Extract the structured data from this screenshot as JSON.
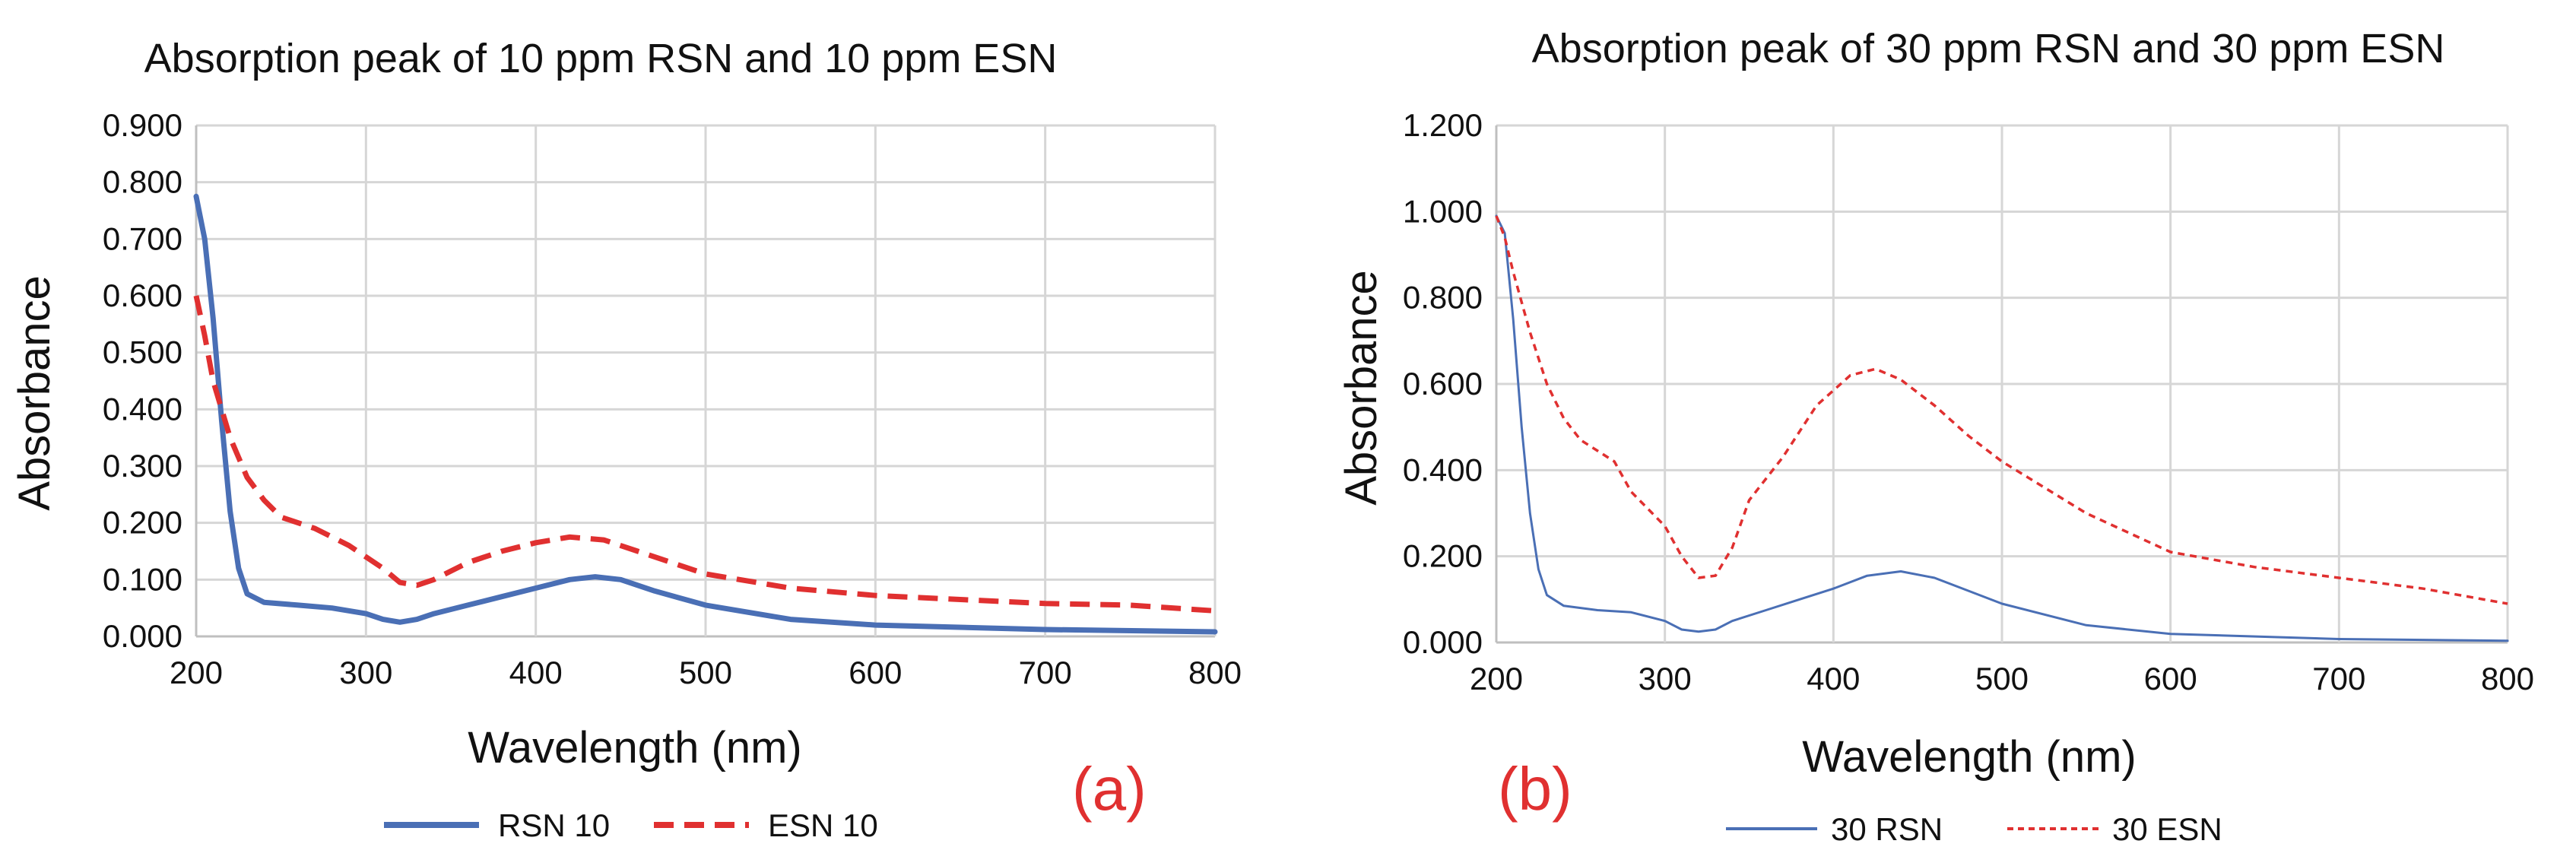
{
  "figure": {
    "panel_labels": [
      "(a)",
      "(b)"
    ],
    "panel_label_color": "#e03030"
  },
  "chart_data": [
    {
      "type": "line",
      "title": "Absorption peak of 10 ppm RSN and 10 ppm ESN",
      "xlabel": "Wavelength (nm)",
      "ylabel": "Absorbance",
      "xlim": [
        200,
        800
      ],
      "ylim": [
        0,
        0.9
      ],
      "grid": true,
      "legend_position": "bottom",
      "x_ticks": [
        "200",
        "300",
        "400",
        "500",
        "600",
        "700",
        "800"
      ],
      "y_ticks": [
        "0.000",
        "0.100",
        "0.200",
        "0.300",
        "0.400",
        "0.500",
        "0.600",
        "0.700",
        "0.800",
        "0.900"
      ],
      "series": [
        {
          "name": "RSN 10",
          "color": "#4a6fb5",
          "dash": "solid",
          "points": [
            [
              200,
              0.775
            ],
            [
              205,
              0.7
            ],
            [
              210,
              0.56
            ],
            [
              215,
              0.38
            ],
            [
              220,
              0.22
            ],
            [
              225,
              0.12
            ],
            [
              230,
              0.075
            ],
            [
              240,
              0.06
            ],
            [
              260,
              0.055
            ],
            [
              280,
              0.05
            ],
            [
              300,
              0.04
            ],
            [
              310,
              0.03
            ],
            [
              320,
              0.025
            ],
            [
              330,
              0.03
            ],
            [
              340,
              0.04
            ],
            [
              360,
              0.055
            ],
            [
              380,
              0.07
            ],
            [
              400,
              0.085
            ],
            [
              420,
              0.1
            ],
            [
              435,
              0.105
            ],
            [
              450,
              0.1
            ],
            [
              470,
              0.08
            ],
            [
              500,
              0.055
            ],
            [
              550,
              0.03
            ],
            [
              600,
              0.02
            ],
            [
              700,
              0.012
            ],
            [
              800,
              0.008
            ]
          ]
        },
        {
          "name": "ESN 10",
          "color": "#e03030",
          "dash": "dashed",
          "points": [
            [
              200,
              0.6
            ],
            [
              205,
              0.53
            ],
            [
              210,
              0.45
            ],
            [
              220,
              0.35
            ],
            [
              230,
              0.28
            ],
            [
              240,
              0.24
            ],
            [
              250,
              0.21
            ],
            [
              270,
              0.19
            ],
            [
              290,
              0.16
            ],
            [
              310,
              0.12
            ],
            [
              320,
              0.095
            ],
            [
              330,
              0.09
            ],
            [
              340,
              0.1
            ],
            [
              360,
              0.13
            ],
            [
              380,
              0.15
            ],
            [
              400,
              0.165
            ],
            [
              420,
              0.175
            ],
            [
              440,
              0.17
            ],
            [
              460,
              0.15
            ],
            [
              480,
              0.13
            ],
            [
              500,
              0.11
            ],
            [
              550,
              0.085
            ],
            [
              600,
              0.072
            ],
            [
              650,
              0.065
            ],
            [
              700,
              0.058
            ],
            [
              750,
              0.055
            ],
            [
              800,
              0.045
            ]
          ]
        }
      ]
    },
    {
      "type": "line",
      "title": "Absorption peak of 30 ppm RSN and 30 ppm ESN",
      "xlabel": "Wavelength (nm)",
      "ylabel": "Absorbance",
      "xlim": [
        200,
        800
      ],
      "ylim": [
        0,
        1.2
      ],
      "grid": true,
      "legend_position": "bottom",
      "x_ticks": [
        "200",
        "300",
        "400",
        "500",
        "600",
        "700",
        "800"
      ],
      "y_ticks": [
        "0.000",
        "0.200",
        "0.400",
        "0.600",
        "0.800",
        "1.000",
        "1.200"
      ],
      "series": [
        {
          "name": "30 RSN",
          "color": "#4a6fb5",
          "dash": "solid",
          "points": [
            [
              200,
              0.99
            ],
            [
              205,
              0.95
            ],
            [
              210,
              0.75
            ],
            [
              215,
              0.5
            ],
            [
              220,
              0.3
            ],
            [
              225,
              0.17
            ],
            [
              230,
              0.11
            ],
            [
              240,
              0.085
            ],
            [
              260,
              0.075
            ],
            [
              280,
              0.07
            ],
            [
              300,
              0.05
            ],
            [
              310,
              0.03
            ],
            [
              320,
              0.025
            ],
            [
              330,
              0.03
            ],
            [
              340,
              0.05
            ],
            [
              360,
              0.075
            ],
            [
              380,
              0.1
            ],
            [
              400,
              0.125
            ],
            [
              420,
              0.155
            ],
            [
              440,
              0.165
            ],
            [
              460,
              0.15
            ],
            [
              480,
              0.12
            ],
            [
              500,
              0.09
            ],
            [
              550,
              0.04
            ],
            [
              600,
              0.02
            ],
            [
              700,
              0.008
            ],
            [
              800,
              0.004
            ]
          ]
        },
        {
          "name": "30 ESN",
          "color": "#e03030",
          "dash": "dotted",
          "points": [
            [
              200,
              0.99
            ],
            [
              205,
              0.94
            ],
            [
              210,
              0.86
            ],
            [
              220,
              0.72
            ],
            [
              230,
              0.6
            ],
            [
              240,
              0.52
            ],
            [
              250,
              0.47
            ],
            [
              270,
              0.42
            ],
            [
              280,
              0.35
            ],
            [
              300,
              0.27
            ],
            [
              310,
              0.2
            ],
            [
              320,
              0.15
            ],
            [
              330,
              0.155
            ],
            [
              340,
              0.22
            ],
            [
              350,
              0.33
            ],
            [
              370,
              0.43
            ],
            [
              390,
              0.55
            ],
            [
              410,
              0.62
            ],
            [
              425,
              0.635
            ],
            [
              440,
              0.61
            ],
            [
              460,
              0.55
            ],
            [
              480,
              0.48
            ],
            [
              500,
              0.42
            ],
            [
              550,
              0.3
            ],
            [
              600,
              0.21
            ],
            [
              650,
              0.175
            ],
            [
              700,
              0.15
            ],
            [
              750,
              0.125
            ],
            [
              800,
              0.09
            ]
          ]
        }
      ]
    }
  ]
}
